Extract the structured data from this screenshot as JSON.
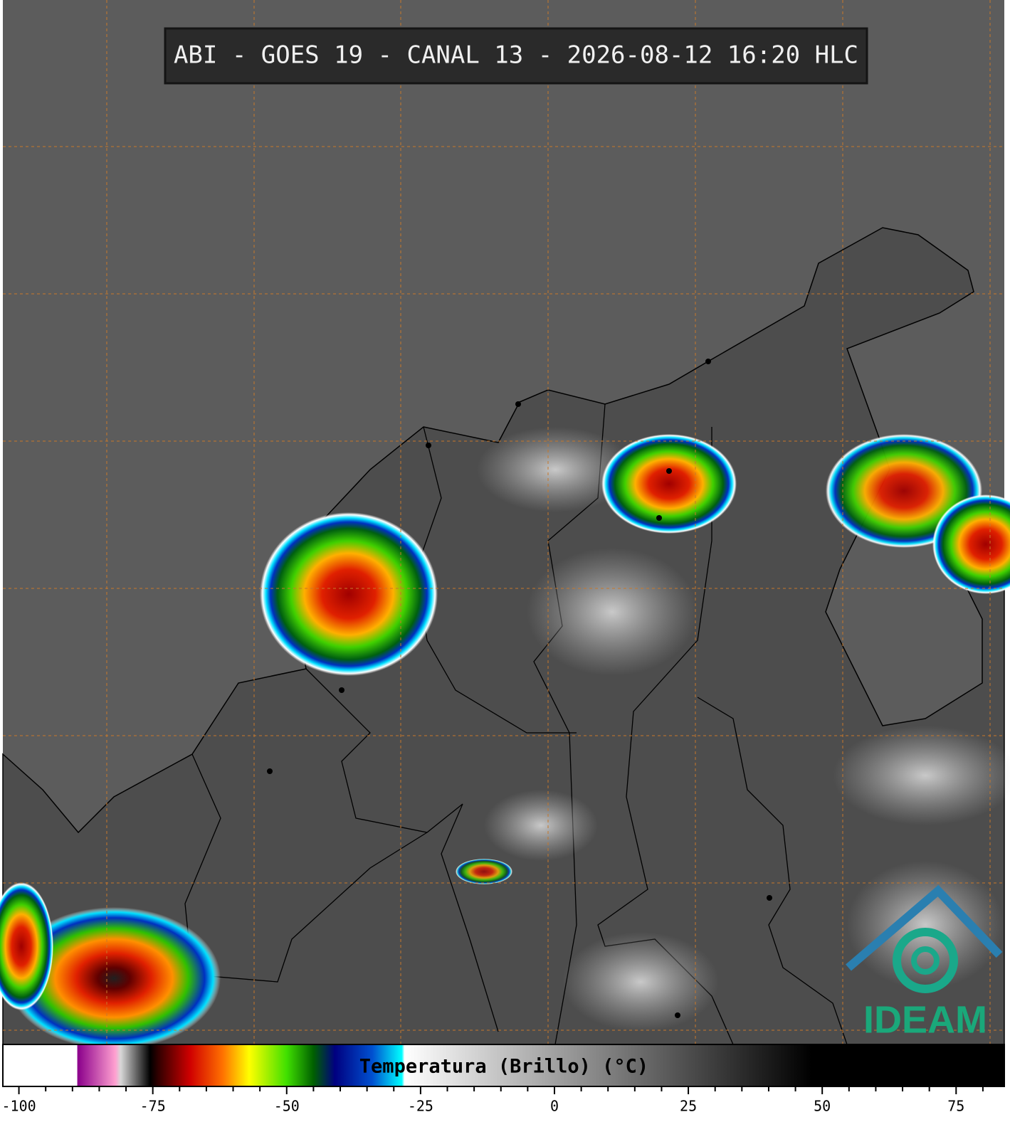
{
  "title": "ABI - GOES 19 - CANAL 13 - 2026-08-12 16:20 HLC",
  "logo": "IDEAM",
  "colorbar": {
    "label": "Temperatura (Brillo) (°C)",
    "xlim": [
      -103,
      84
    ],
    "xticks": [
      -100,
      -75,
      -50,
      -25,
      0,
      25,
      50,
      75
    ],
    "minor_ticks": [
      -95,
      -90,
      -85,
      -80,
      -70,
      -65,
      -60,
      -55,
      -45,
      -40,
      -35,
      -30,
      -20,
      -15,
      -10,
      -5,
      5,
      10,
      15,
      20,
      30,
      35,
      40,
      45,
      55,
      60,
      65,
      70,
      80
    ],
    "stops": [
      {
        "value": -103,
        "color": "#ffffff"
      },
      {
        "value": -89.2,
        "color": "#ffffff"
      },
      {
        "value": -89,
        "color": "#8b008b"
      },
      {
        "value": -82,
        "color": "#ffa0d0"
      },
      {
        "value": -81,
        "color": "#d8d8d8"
      },
      {
        "value": -75.5,
        "color": "#000000"
      },
      {
        "value": -74,
        "color": "#300000"
      },
      {
        "value": -68,
        "color": "#d00000"
      },
      {
        "value": -62,
        "color": "#ff7000"
      },
      {
        "value": -57,
        "color": "#ffff00"
      },
      {
        "value": -50,
        "color": "#40e000"
      },
      {
        "value": -45,
        "color": "#006000"
      },
      {
        "value": -41,
        "color": "#000080"
      },
      {
        "value": -34,
        "color": "#0050d0"
      },
      {
        "value": -28.5,
        "color": "#00ffff"
      },
      {
        "value": -28,
        "color": "#ffffff"
      },
      {
        "value": 48,
        "color": "#000000"
      },
      {
        "value": 84,
        "color": "#000000"
      }
    ]
  }
}
